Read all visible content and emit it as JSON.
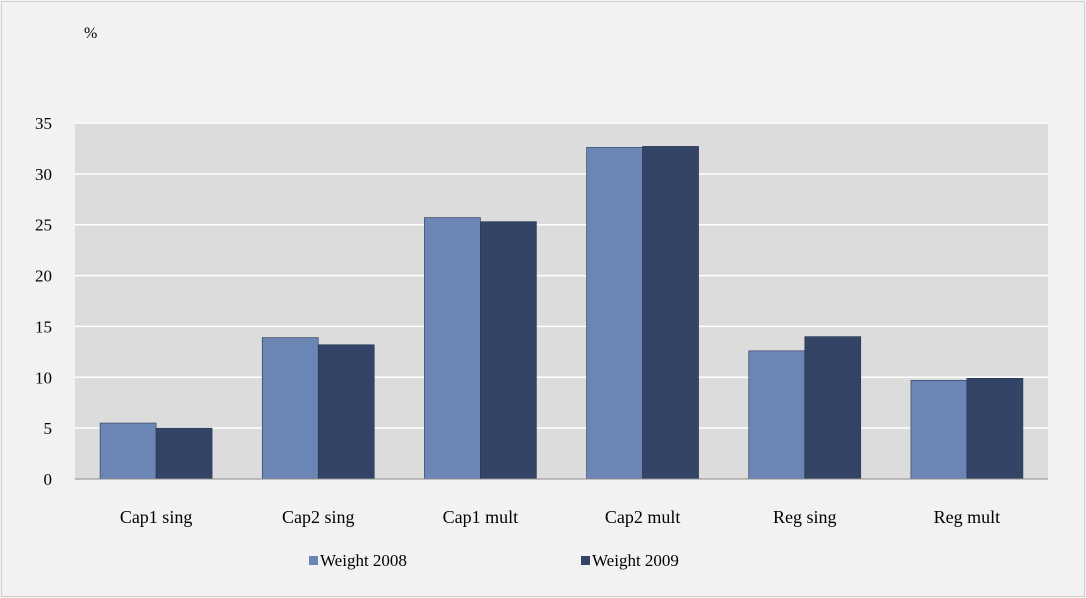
{
  "chart_data": {
    "type": "bar",
    "unit_label": "%",
    "categories": [
      "Cap1 sing",
      "Cap2 sing",
      "Cap1 mult",
      "Cap2 mult",
      "Reg sing",
      "Reg mult"
    ],
    "series": [
      {
        "name": "Weight 2008",
        "color": "#6b86b5",
        "values": [
          5.5,
          13.9,
          25.7,
          32.6,
          12.6,
          9.7
        ]
      },
      {
        "name": "Weight 2009",
        "color": "#334466",
        "values": [
          5.0,
          13.2,
          25.3,
          32.7,
          14.0,
          9.9
        ]
      }
    ],
    "ylim": [
      0,
      35
    ],
    "yticks": [
      "0",
      "5",
      "10",
      "15",
      "20",
      "25",
      "30",
      "35"
    ],
    "grid": true,
    "plot_background": "#dcdcdc",
    "legend_position": "bottom"
  }
}
